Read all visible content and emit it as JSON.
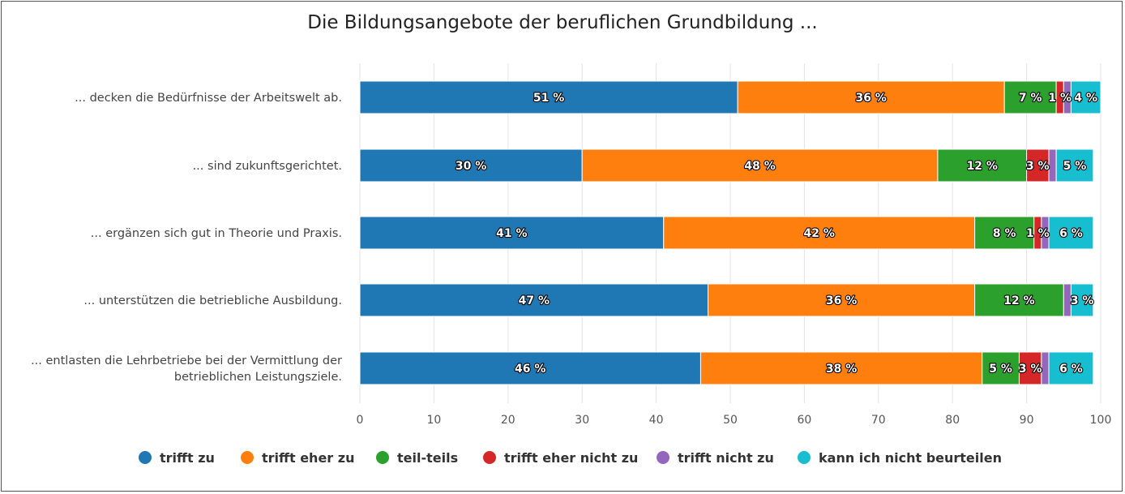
{
  "chart_data": {
    "type": "bar",
    "orientation": "horizontal",
    "stacked": true,
    "title": "Die Bildungsangebote der beruflichen Grundbildung ...",
    "categories": [
      [
        "... decken die Bedürfnisse der Arbeitswelt ab."
      ],
      [
        "... sind zukunftsgerichtet."
      ],
      [
        "... ergänzen sich gut in Theorie und Praxis."
      ],
      [
        "... unterstützen die betriebliche Ausbildung."
      ],
      [
        "... entlasten die Lehrbetriebe bei der Vermittlung der",
        "betrieblichen Leistungsziele."
      ]
    ],
    "xlim": [
      0,
      100
    ],
    "xticks": [
      "0",
      "10",
      "20",
      "30",
      "40",
      "50",
      "60",
      "70",
      "80",
      "90",
      "100"
    ],
    "grid": true,
    "legend_position": "bottom",
    "series": [
      {
        "name": "trifft zu",
        "color": "#1f77b4",
        "values": [
          51,
          30,
          41,
          47,
          46
        ],
        "labels": [
          "51 %",
          "30 %",
          "41 %",
          "47 %",
          "46 %"
        ]
      },
      {
        "name": "trifft eher zu",
        "color": "#ff7f0e",
        "values": [
          36,
          48,
          42,
          36,
          38
        ],
        "labels": [
          "36 %",
          "48 %",
          "42 %",
          "36 %",
          "38 %"
        ]
      },
      {
        "name": "teil-teils",
        "color": "#2ca02c",
        "values": [
          7,
          12,
          8,
          12,
          5
        ],
        "labels": [
          "7 %",
          "12 %",
          "8 %",
          "12 %",
          "5 %"
        ]
      },
      {
        "name": "trifft eher nicht zu",
        "color": "#d62728",
        "values": [
          1,
          3,
          1,
          0,
          3
        ],
        "labels": [
          "1 %",
          "3 %",
          "1 %",
          "",
          "3 %"
        ]
      },
      {
        "name": "trifft nicht zu",
        "color": "#9467bd",
        "values": [
          1,
          1,
          1,
          1,
          1
        ],
        "labels": [
          "",
          "",
          "",
          "",
          ""
        ]
      },
      {
        "name": "kann ich nicht beurteilen",
        "color": "#17becf",
        "values": [
          4,
          5,
          6,
          3,
          6
        ],
        "labels": [
          "4 %",
          "5 %",
          "6 %",
          "3 %",
          "6 %"
        ]
      }
    ]
  }
}
